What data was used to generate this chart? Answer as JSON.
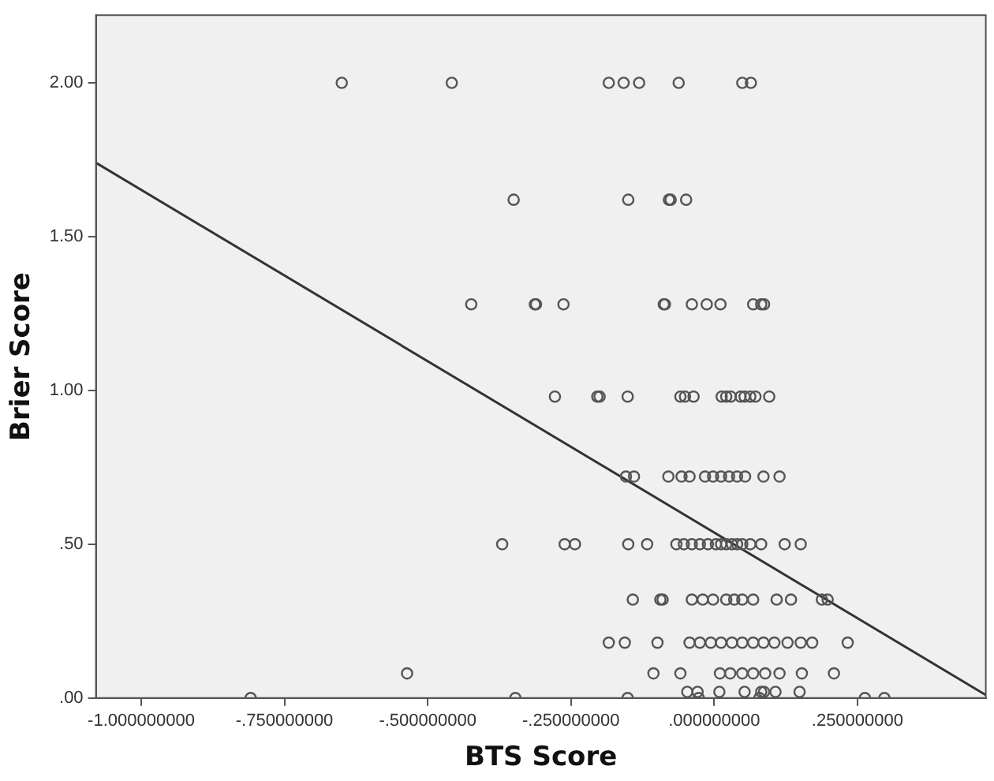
{
  "chart_data": {
    "type": "scatter",
    "xlabel": "BTS Score",
    "ylabel": "Brier Score",
    "xlim": [
      -1.079,
      0.474
    ],
    "xticks": [
      {
        "value": -1,
        "label": "-1.000000000"
      },
      {
        "value": -0.75,
        "label": "-.750000000"
      },
      {
        "value": -0.5,
        "label": "-.500000000"
      },
      {
        "value": -0.25,
        "label": "-.250000000"
      },
      {
        "value": 0,
        "label": ".000000000"
      },
      {
        "value": 0.25,
        "label": ".250000000"
      }
    ],
    "ylim": [
      0,
      2.22
    ],
    "yticks": [
      {
        "value": 0,
        "label": ".00"
      },
      {
        "value": 0.5,
        "label": ".50"
      },
      {
        "value": 1,
        "label": "1.00"
      },
      {
        "value": 1.5,
        "label": "1.50"
      },
      {
        "value": 2,
        "label": "2.00"
      }
    ],
    "grid": false,
    "legend": false,
    "series": [
      {
        "type": "scatter",
        "color": "#555555",
        "marker": "circle",
        "x": [
          -0.65,
          -0.458,
          -0.184,
          -0.158,
          -0.131,
          -0.062,
          0.049,
          0.064,
          -0.35,
          -0.15,
          -0.079,
          -0.076,
          -0.049,
          -0.424,
          -0.313,
          -0.311,
          -0.263,
          -0.088,
          -0.086,
          -0.039,
          -0.013,
          0.011,
          0.068,
          0.082,
          0.087,
          -0.278,
          -0.204,
          -0.2,
          -0.151,
          -0.059,
          -0.051,
          -0.036,
          0.013,
          0.021,
          0.029,
          0.046,
          0.053,
          0.063,
          0.072,
          0.096,
          -0.154,
          -0.14,
          -0.08,
          -0.057,
          -0.043,
          -0.016,
          -0.002,
          0.012,
          0.026,
          0.04,
          0.054,
          0.086,
          0.114,
          -0.37,
          -0.261,
          -0.243,
          -0.15,
          -0.117,
          -0.066,
          -0.053,
          -0.039,
          -0.025,
          -0.011,
          0.003,
          0.012,
          0.021,
          0.031,
          0.04,
          0.049,
          0.063,
          0.082,
          0.123,
          0.151,
          -0.142,
          -0.094,
          -0.09,
          -0.039,
          -0.02,
          -0.002,
          0.021,
          0.035,
          0.049,
          0.068,
          0.109,
          0.134,
          0.188,
          0.198,
          -0.184,
          -0.156,
          -0.099,
          -0.043,
          -0.025,
          -0.006,
          0.012,
          0.031,
          0.049,
          0.068,
          0.086,
          0.105,
          0.128,
          0.151,
          0.171,
          0.233,
          -0.536,
          -0.106,
          -0.059,
          0.01,
          0.028,
          0.049,
          0.068,
          0.089,
          0.114,
          0.153,
          0.209,
          -0.047,
          -0.029,
          0.009,
          0.053,
          0.082,
          0.087,
          0.107,
          0.149,
          -0.809,
          -0.347,
          -0.151,
          -0.027,
          0.079,
          0.263,
          0.297
        ],
        "values": [
          2,
          2,
          2,
          2,
          2,
          2,
          2,
          2,
          1.62,
          1.62,
          1.62,
          1.62,
          1.62,
          1.28,
          1.28,
          1.28,
          1.28,
          1.28,
          1.28,
          1.28,
          1.28,
          1.28,
          1.28,
          1.28,
          1.28,
          0.98,
          0.98,
          0.98,
          0.98,
          0.98,
          0.98,
          0.98,
          0.98,
          0.98,
          0.98,
          0.98,
          0.98,
          0.98,
          0.98,
          0.98,
          0.72,
          0.72,
          0.72,
          0.72,
          0.72,
          0.72,
          0.72,
          0.72,
          0.72,
          0.72,
          0.72,
          0.72,
          0.72,
          0.5,
          0.5,
          0.5,
          0.5,
          0.5,
          0.5,
          0.5,
          0.5,
          0.5,
          0.5,
          0.5,
          0.5,
          0.5,
          0.5,
          0.5,
          0.5,
          0.5,
          0.5,
          0.5,
          0.5,
          0.32,
          0.32,
          0.32,
          0.32,
          0.32,
          0.32,
          0.32,
          0.32,
          0.32,
          0.32,
          0.32,
          0.32,
          0.32,
          0.32,
          0.18,
          0.18,
          0.18,
          0.18,
          0.18,
          0.18,
          0.18,
          0.18,
          0.18,
          0.18,
          0.18,
          0.18,
          0.18,
          0.18,
          0.18,
          0.18,
          0.08,
          0.08,
          0.08,
          0.08,
          0.08,
          0.08,
          0.08,
          0.08,
          0.08,
          0.08,
          0.08,
          0.02,
          0.02,
          0.02,
          0.02,
          0.02,
          0.02,
          0.02,
          0.02,
          0,
          0,
          0,
          0,
          0,
          0,
          0
        ]
      },
      {
        "type": "line",
        "color": "#333333",
        "x": [
          -1.079,
          0.474
        ],
        "values": [
          1.74,
          0.01
        ]
      }
    ]
  }
}
